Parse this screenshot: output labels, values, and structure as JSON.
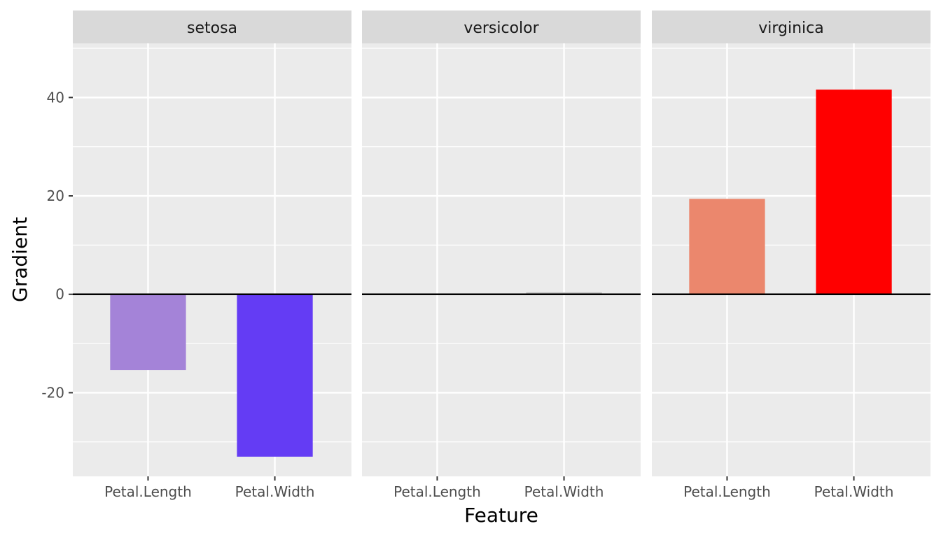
{
  "chart_data": {
    "type": "bar",
    "facets": [
      "setosa",
      "versicolor",
      "virginica"
    ],
    "categories": [
      "Petal.Length",
      "Petal.Width"
    ],
    "series": [
      {
        "facet": "setosa",
        "values": [
          -15.4,
          -33.0
        ],
        "colors": [
          "#a483d8",
          "#643cf4"
        ]
      },
      {
        "facet": "versicolor",
        "values": [
          0.1,
          0.4
        ],
        "colors": [
          "#d4d4d4",
          "#bfbfbf"
        ]
      },
      {
        "facet": "virginica",
        "values": [
          19.4,
          41.6
        ],
        "colors": [
          "#eb876d",
          "#ff0000"
        ]
      }
    ],
    "xlabel": "Feature",
    "ylabel": "Gradient",
    "ylim": [
      -37,
      51
    ],
    "yticks": [
      -20,
      0,
      20,
      40
    ],
    "ytick_labels": [
      "-20",
      "0",
      "20",
      "40"
    ],
    "grid": true,
    "reference_line": 0,
    "panel_background": "#ebebeb",
    "strip_background": "#d9d9d9",
    "gridline_color": "#ffffff"
  }
}
